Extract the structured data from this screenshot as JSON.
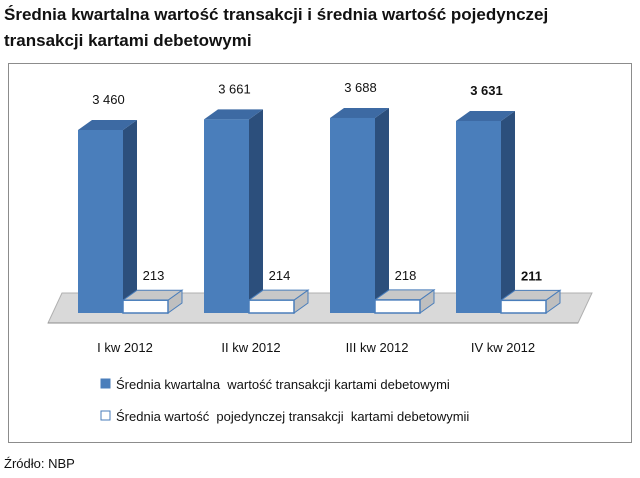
{
  "title_line1": "Średnia kwartalna wartość transakcji i średnia wartość pojedynczej",
  "title_line2": "transakcji kartami debetowymi",
  "source": "Źródło: NBP",
  "colors": {
    "series1_front": "#4a7ebb",
    "series1_top": "#3d6aa3",
    "series1_side": "#2c4f7c",
    "series2_front": "#ffffff",
    "series2_border": "#4a7ebb",
    "floor": "#d9d9d9"
  },
  "chart_data": {
    "type": "bar",
    "categories": [
      "I kw 2012",
      "II kw 2012",
      "III kw 2012",
      "IV kw 2012"
    ],
    "series": [
      {
        "name": "Średnia kwartalna  wartość transakcji kartami debetowymi",
        "values": [
          3460,
          3661,
          3688,
          3631
        ],
        "labels": [
          "3 460",
          "3 661",
          "3 688",
          "3 631"
        ]
      },
      {
        "name": "Średnia wartość  pojedynczej transakcji  kartami debetowymii",
        "values": [
          213,
          214,
          218,
          211
        ],
        "labels": [
          "213",
          "214",
          "218",
          "211"
        ]
      }
    ],
    "bold_label_index": 3,
    "grid": false,
    "legend": "bottom"
  }
}
